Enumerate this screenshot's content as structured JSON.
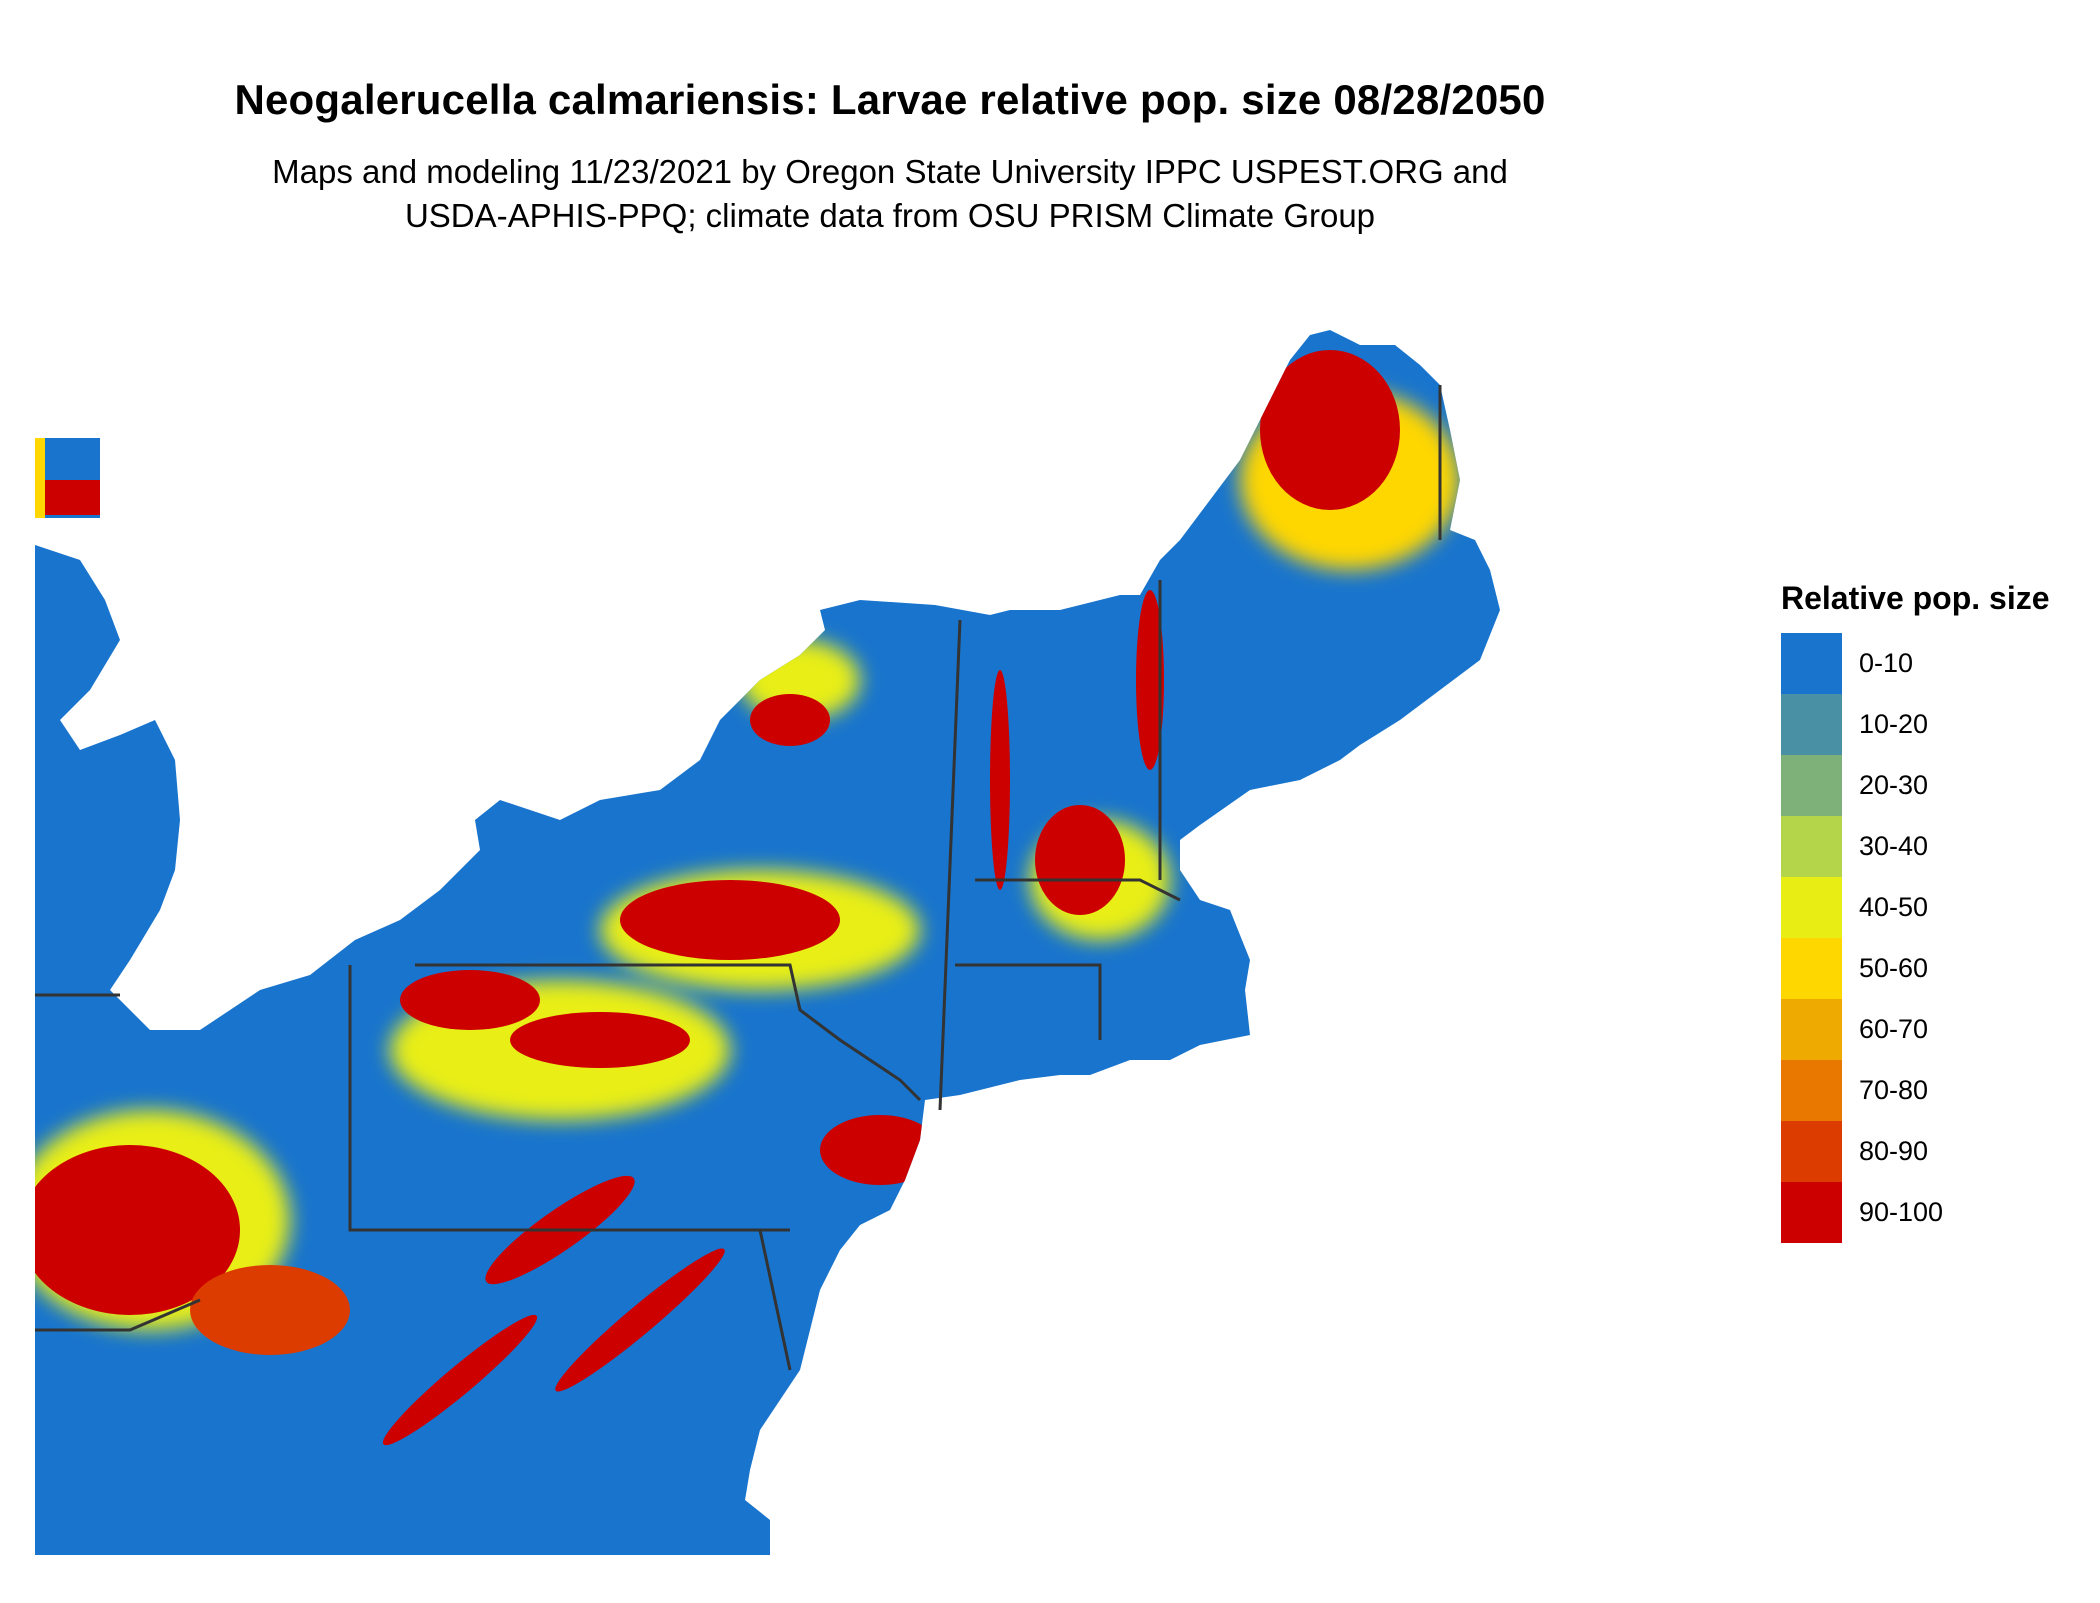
{
  "title": "Neogalerucella calmariensis: Larvae relative pop. size 08/28/2050",
  "subtitle_line1": "Maps and modeling 11/23/2021 by Oregon State University IPPC USPEST.ORG and",
  "subtitle_line2": "USDA-APHIS-PPQ; climate data from OSU PRISM Climate Group",
  "legend": {
    "title": "Relative pop. size",
    "items": [
      {
        "label": "0-10",
        "color": "#1874CD"
      },
      {
        "label": "10-20",
        "color": "#4A90A4"
      },
      {
        "label": "20-30",
        "color": "#7EB07A"
      },
      {
        "label": "30-40",
        "color": "#B4D44A"
      },
      {
        "label": "40-50",
        "color": "#E8EE14"
      },
      {
        "label": "50-60",
        "color": "#FFD700"
      },
      {
        "label": "60-70",
        "color": "#EEAA00"
      },
      {
        "label": "70-80",
        "color": "#E87800"
      },
      {
        "label": "80-90",
        "color": "#DD3C00"
      },
      {
        "label": "90-100",
        "color": "#CD0000"
      }
    ]
  },
  "colors": {
    "water": "#FFFFFF",
    "land_base": "#1874CD",
    "border": "#333333"
  }
}
